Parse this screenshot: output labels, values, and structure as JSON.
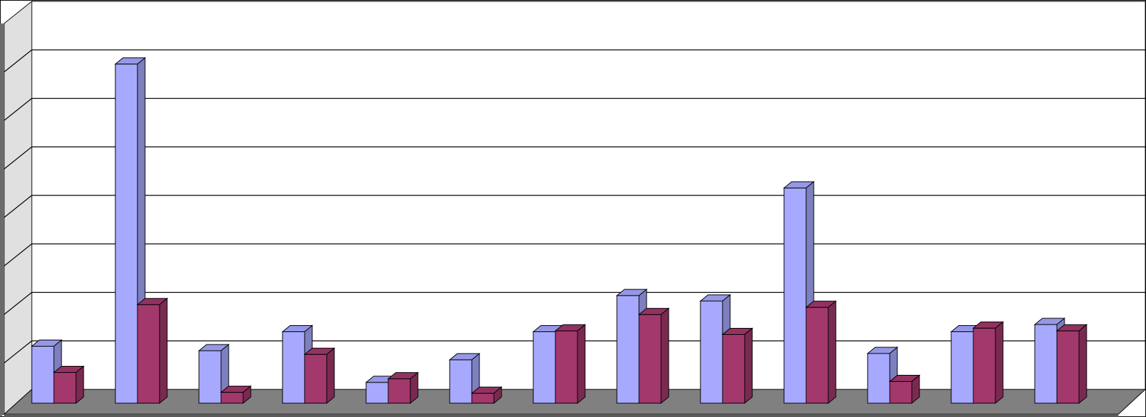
{
  "chart_data": {
    "type": "bar",
    "style": "3d-clustered-column",
    "title": "",
    "xlabel": "",
    "ylabel": "",
    "categories": [
      "",
      "",
      "",
      "",
      "",
      "",
      "",
      "",
      "",
      "",
      "",
      "",
      ""
    ],
    "series": [
      {
        "color": "#a7a9ff",
        "values": [
          63,
          375,
          58,
          79,
          23,
          48,
          79,
          119,
          113,
          238,
          55,
          79,
          87
        ]
      },
      {
        "color": "#a3386c",
        "values": [
          34,
          109,
          12,
          54,
          27,
          11,
          80,
          98,
          76,
          106,
          24,
          83,
          80
        ]
      }
    ],
    "ylim": [
      0,
      400
    ],
    "ytick_step": 50,
    "grid": true,
    "legend": "none",
    "colors": {
      "floor": "#808080",
      "side_wall": "#e0e0e0",
      "back_wall": "#ffffff",
      "gridline": "#000000"
    }
  }
}
